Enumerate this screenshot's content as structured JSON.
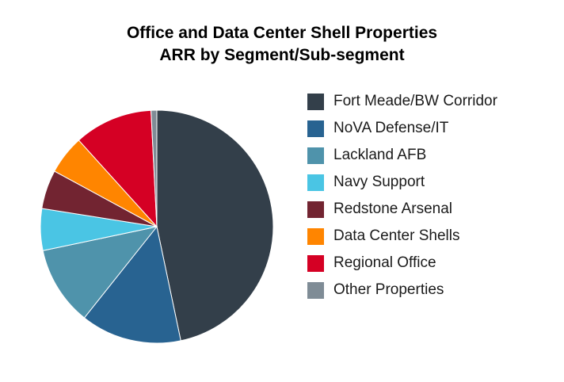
{
  "chart_data": {
    "type": "pie",
    "title": "Office and Data Center Shell Properties",
    "subtitle": "ARR by Segment/Sub-segment",
    "legend_position": "right",
    "slices": [
      {
        "name": "Fort Meade/BW Corridor",
        "value": 46.7,
        "color": "#333f4a"
      },
      {
        "name": "NoVA Defense/IT",
        "value": 14.0,
        "color": "#286391"
      },
      {
        "name": "Lackland AFB",
        "value": 11.0,
        "color": "#4f93ab"
      },
      {
        "name": "Navy Support",
        "value": 5.8,
        "color": "#4ac5e4"
      },
      {
        "name": "Redstone Arsenal",
        "value": 5.4,
        "color": "#722431"
      },
      {
        "name": "Data Center Shells",
        "value": 5.4,
        "color": "#ff8500"
      },
      {
        "name": "Regional Office",
        "value": 10.9,
        "color": "#d50024"
      },
      {
        "name": "Other Properties",
        "value": 0.8,
        "color": "#7f8c96"
      }
    ]
  }
}
